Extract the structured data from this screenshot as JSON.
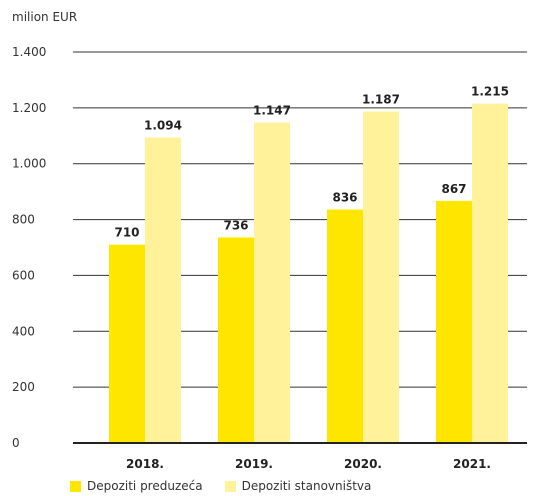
{
  "chart_data": {
    "type": "bar",
    "unit_label": "milion EUR",
    "categories": [
      "2018.",
      "2019.",
      "2020.",
      "2021."
    ],
    "series": [
      {
        "name": "Depoziti preduzeća",
        "values": [
          710,
          736,
          836,
          867
        ],
        "labels": [
          "710",
          "736",
          "836",
          "867"
        ],
        "color": "#ffe600"
      },
      {
        "name": "Depoziti stanovništva",
        "values": [
          1094,
          1147,
          1187,
          1215
        ],
        "labels": [
          "1.094",
          "1.147",
          "1.187",
          "1.215"
        ],
        "color": "#fff29a"
      }
    ],
    "ylim": [
      0,
      1400
    ],
    "yticks": [
      {
        "value": 0,
        "label": "0"
      },
      {
        "value": 200,
        "label": "200"
      },
      {
        "value": 400,
        "label": "400"
      },
      {
        "value": 600,
        "label": "600"
      },
      {
        "value": 800,
        "label": "800"
      },
      {
        "value": 1000,
        "label": "1.000"
      },
      {
        "value": 1200,
        "label": "1.200"
      },
      {
        "value": 1400,
        "label": "1.400"
      }
    ],
    "grid": true,
    "legend_position": "bottom-left"
  }
}
